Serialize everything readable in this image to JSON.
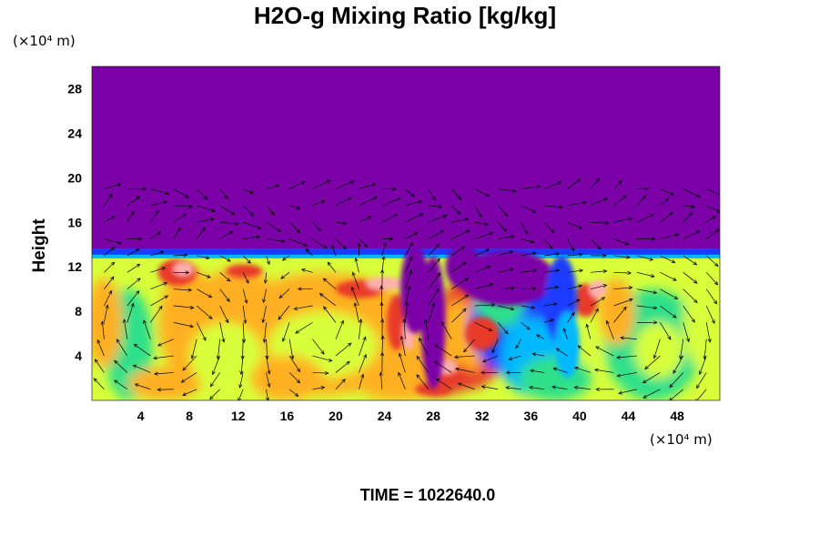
{
  "chart_data": {
    "type": "heatmap",
    "title": "H2O-g Mixing Ratio [kg/kg]",
    "ylabel": "Height",
    "xunit": "(×10⁴ m)",
    "yunit": "(×10⁴ m)",
    "xlim": [
      0,
      51.5
    ],
    "ylim": [
      0,
      30
    ],
    "xticks": [
      4,
      8,
      12,
      16,
      20,
      24,
      28,
      32,
      36,
      40,
      44,
      48
    ],
    "yticks": [
      4,
      8,
      12,
      16,
      20,
      24,
      28
    ],
    "moist_layer_top": 13.5,
    "vector_field_top": 20,
    "time_label": "TIME = 1022640.0",
    "colors": {
      "dry_aloft": "#7b00a8",
      "low": "#1a3cff",
      "mid_low": "#00b8ff",
      "mid": "#2ee08a",
      "mid_high": "#d8ff3a",
      "high": "#ffb020",
      "very_high": "#e83a2a",
      "peak": "#ffb0b0",
      "arrow": "#000000"
    }
  }
}
